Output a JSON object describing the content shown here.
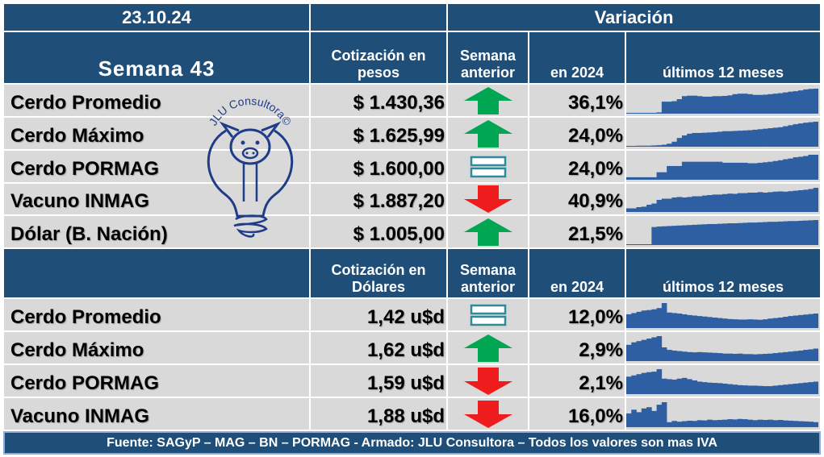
{
  "header": {
    "date": "23.10.24",
    "variation_title": "Variación",
    "week_label": "Semana  43"
  },
  "columns": {
    "quote_pesos": "Cotización en pesos",
    "quote_dollars": "Cotización en Dólares",
    "prev_week": "Semana anterior",
    "in_2024": "en 2024",
    "last_12": "últimos 12 meses"
  },
  "pesos_rows": [
    {
      "label": "Cerdo Promedio",
      "price": "$ 1.430,36",
      "trend": "up",
      "pct": "36,1%",
      "spark": [
        0.02,
        0.02,
        0.02,
        0.03,
        0.03,
        0.03,
        0.05,
        0.48,
        0.48,
        0.5,
        0.58,
        0.7,
        0.72,
        0.72,
        0.7,
        0.68,
        0.68,
        0.7,
        0.7,
        0.71,
        0.73,
        0.78,
        0.8,
        0.8,
        0.78,
        0.75,
        0.75,
        0.76,
        0.78,
        0.8,
        0.82,
        0.85,
        0.88,
        0.9,
        0.93,
        0.97,
        0.99,
        1.0
      ]
    },
    {
      "label": "Cerdo Máximo",
      "price": "$ 1.625,99",
      "trend": "up",
      "pct": "24,0%",
      "spark": [
        0.03,
        0.03,
        0.04,
        0.04,
        0.04,
        0.05,
        0.06,
        0.08,
        0.12,
        0.2,
        0.35,
        0.45,
        0.52,
        0.55,
        0.55,
        0.56,
        0.57,
        0.58,
        0.6,
        0.62,
        0.62,
        0.63,
        0.64,
        0.65,
        0.66,
        0.68,
        0.7,
        0.72,
        0.74,
        0.76,
        0.78,
        0.82,
        0.86,
        0.9,
        0.93,
        0.96,
        0.98,
        1.0
      ]
    },
    {
      "label": "Cerdo PORMAG",
      "price": "$ 1.600,00",
      "trend": "equal",
      "pct": "24,0%",
      "spark": [
        0.1,
        0.1,
        0.1,
        0.1,
        0.1,
        0.1,
        0.3,
        0.3,
        0.55,
        0.55,
        0.55,
        0.72,
        0.72,
        0.72,
        0.72,
        0.72,
        0.72,
        0.72,
        0.72,
        0.68,
        0.68,
        0.68,
        0.68,
        0.68,
        0.66,
        0.66,
        0.68,
        0.7,
        0.72,
        0.75,
        0.78,
        0.82,
        0.85,
        0.9,
        0.92,
        0.95,
        1.0,
        1.0
      ]
    },
    {
      "label": "Vacuno INMAG",
      "price": "$ 1.887,20",
      "trend": "down",
      "pct": "40,9%",
      "spark": [
        0.15,
        0.15,
        0.2,
        0.22,
        0.3,
        0.35,
        0.5,
        0.55,
        0.55,
        0.6,
        0.62,
        0.6,
        0.62,
        0.65,
        0.65,
        0.68,
        0.7,
        0.72,
        0.72,
        0.74,
        0.76,
        0.75,
        0.78,
        0.78,
        0.8,
        0.8,
        0.82,
        0.8,
        0.82,
        0.84,
        0.85,
        0.84,
        0.86,
        0.88,
        0.9,
        0.92,
        0.95,
        1.0
      ]
    },
    {
      "label": "Dólar (B. Nación)",
      "price": "$ 1.005,00",
      "trend": "up",
      "pct": "21,5%",
      "spark": [
        0.02,
        0.02,
        0.02,
        0.02,
        0.02,
        0.72,
        0.74,
        0.75,
        0.76,
        0.77,
        0.78,
        0.79,
        0.8,
        0.81,
        0.82,
        0.83,
        0.84,
        0.84,
        0.85,
        0.86,
        0.87,
        0.87,
        0.88,
        0.89,
        0.9,
        0.9,
        0.91,
        0.92,
        0.93,
        0.93,
        0.94,
        0.95,
        0.96,
        0.96,
        0.97,
        0.98,
        0.99,
        1.0
      ]
    }
  ],
  "dollar_rows": [
    {
      "label": "Cerdo Promedio",
      "price": "1,42 u$d",
      "trend": "equal",
      "pct": "12,0%",
      "spark": [
        0.55,
        0.6,
        0.65,
        0.7,
        0.72,
        0.75,
        0.8,
        1.0,
        0.62,
        0.6,
        0.58,
        0.55,
        0.52,
        0.5,
        0.48,
        0.46,
        0.44,
        0.42,
        0.4,
        0.38,
        0.36,
        0.35,
        0.34,
        0.34,
        0.35,
        0.34,
        0.33,
        0.35,
        0.38,
        0.4,
        0.42,
        0.45,
        0.48,
        0.5,
        0.52,
        0.54,
        0.56,
        0.58
      ]
    },
    {
      "label": "Cerdo Máximo",
      "price": "1,62 u$d",
      "trend": "up",
      "pct": "2,9%",
      "spark": [
        0.65,
        0.75,
        0.8,
        0.85,
        0.9,
        0.95,
        1.0,
        0.55,
        0.45,
        0.42,
        0.4,
        0.38,
        0.36,
        0.35,
        0.36,
        0.35,
        0.34,
        0.33,
        0.32,
        0.3,
        0.3,
        0.29,
        0.3,
        0.28,
        0.28,
        0.27,
        0.28,
        0.29,
        0.3,
        0.32,
        0.34,
        0.36,
        0.38,
        0.4,
        0.42,
        0.45,
        0.47,
        0.5
      ]
    },
    {
      "label": "Cerdo PORMAG",
      "price": "1,59 u$d",
      "trend": "down",
      "pct": "2,1%",
      "spark": [
        0.7,
        0.75,
        0.8,
        0.85,
        0.88,
        0.9,
        1.0,
        0.62,
        0.6,
        0.58,
        0.62,
        0.65,
        0.6,
        0.55,
        0.5,
        0.48,
        0.46,
        0.45,
        0.44,
        0.42,
        0.4,
        0.38,
        0.36,
        0.35,
        0.34,
        0.34,
        0.33,
        0.32,
        0.32,
        0.34,
        0.36,
        0.38,
        0.4,
        0.42,
        0.44,
        0.46,
        0.48,
        0.5
      ]
    },
    {
      "label": "Vacuno INMAG",
      "price": "1,88 u$d",
      "trend": "down",
      "pct": "16,0%",
      "spark": [
        0.55,
        0.7,
        0.6,
        0.75,
        0.8,
        0.65,
        0.9,
        1.0,
        0.2,
        0.25,
        0.22,
        0.24,
        0.26,
        0.25,
        0.28,
        0.27,
        0.3,
        0.28,
        0.29,
        0.3,
        0.32,
        0.31,
        0.33,
        0.32,
        0.3,
        0.28,
        0.3,
        0.29,
        0.3,
        0.28,
        0.29,
        0.27,
        0.26,
        0.25,
        0.24,
        0.23,
        0.22,
        0.2
      ]
    }
  ],
  "logo": {
    "text": "JLU Consultora©"
  },
  "footer": "Fuente: SAGyP – MAG – BN – PORMAG - Armado: JLU Consultora – Todos los valores son mas IVA",
  "colors": {
    "header": "#1f4e79",
    "row": "#d9d9d9",
    "up": "#00a651",
    "down": "#ee1c1c",
    "equal": "#2e8b9a",
    "spark": "#2e5fa3"
  }
}
